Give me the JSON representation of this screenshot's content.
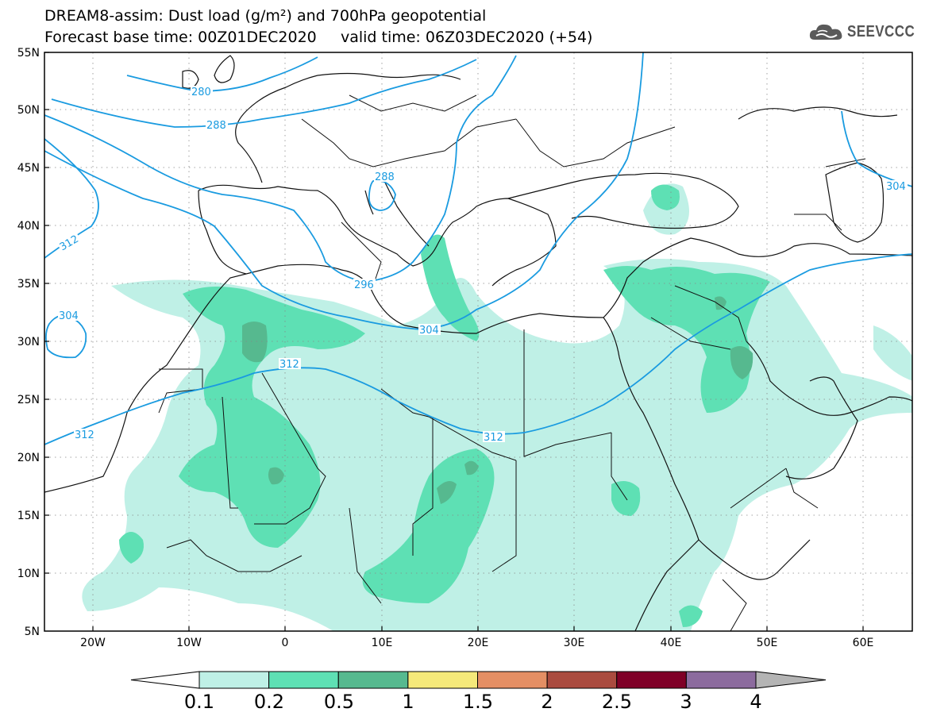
{
  "title_line1": "DREAM8-assim: Dust load (g/m²) and 700hPa geopotential",
  "title_line2": "Forecast base time: 00Z01DEC2020     valid time: 06Z03DEC2020 (+54)",
  "logo_text": "SEEVCCC",
  "lat_labels": [
    "55N",
    "50N",
    "45N",
    "40N",
    "35N",
    "30N",
    "25N",
    "20N",
    "15N",
    "10N",
    "5N"
  ],
  "lon_labels": [
    "20W",
    "10W",
    "0",
    "10E",
    "20E",
    "30E",
    "40E",
    "50E",
    "60E"
  ],
  "colorbar": {
    "labels": [
      "0.1",
      "0.2",
      "0.5",
      "1",
      "1.5",
      "2",
      "2.5",
      "3",
      "4"
    ],
    "colors": [
      "#ffffff",
      "#bff0e6",
      "#5ee0b4",
      "#56b98f",
      "#f5e97a",
      "#e48f64",
      "#aa4b3f",
      "#7f0027",
      "#8c6b9e",
      "#b4b4b4"
    ]
  },
  "contour_labels": [
    "280",
    "288",
    "288",
    "296",
    "304",
    "304",
    "304",
    "312",
    "312",
    "312",
    "312"
  ],
  "colors": {
    "contour": "#1a9be0",
    "dust_low": "#bff0e6",
    "dust_mid": "#5ee0b4",
    "dust_high": "#56b98f"
  }
}
